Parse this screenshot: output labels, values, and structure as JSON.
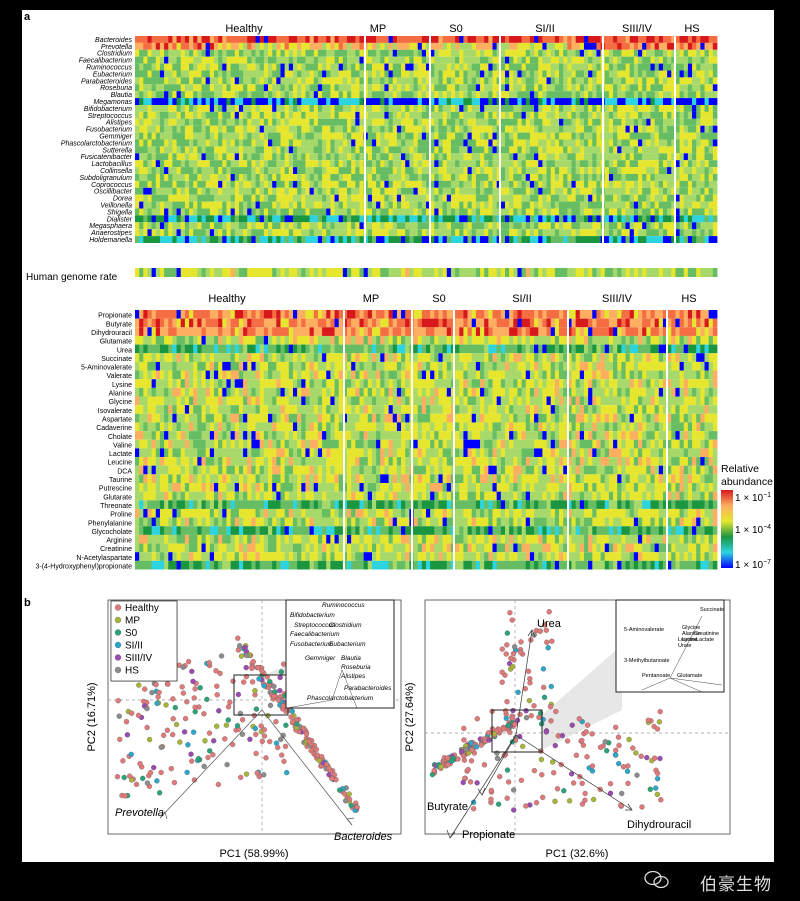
{
  "panel_a": {
    "label": "a",
    "heatmap1": {
      "groups": [
        "Healthy",
        "MP",
        "S0",
        "SI/II",
        "SIII/IV",
        "HS"
      ],
      "rows": [
        "Bacteroides",
        "Prevotella",
        "Clostridium",
        "Faecalibacterium",
        "Ruminococcus",
        "Eubacterium",
        "Parabacteroides",
        "Roseburia",
        "Blautia",
        "Megamonas",
        "Bifidobacterium",
        "Streptococcus",
        "Alistipes",
        "Fusobacterium",
        "Gemmiger",
        "Phascolarctobacterium",
        "Sutterella",
        "Fusicatenibacter",
        "Lactobacillus",
        "Collinsella",
        "Subdoligranulum",
        "Coprococcus",
        "Oscillibacter",
        "Dorea",
        "Veillonella",
        "Shigella",
        "Dialister",
        "Megasphaera",
        "Anaerostipes",
        "Holdemanella"
      ],
      "extra_row_label": "Human genome rate"
    },
    "heatmap2": {
      "groups": [
        "Healthy",
        "MP",
        "S0",
        "SI/II",
        "SIII/IV",
        "HS"
      ],
      "rows": [
        "Propionate",
        "Butyrate",
        "Dihydrouracil",
        "Glutamate",
        "Urea",
        "Succinate",
        "5-Aminovalerate",
        "Valerate",
        "Lysine",
        "Alanine",
        "Glycine",
        "Isovalerate",
        "Aspartate",
        "Cadaverine",
        "Cholate",
        "Valine",
        "Lactate",
        "Leucine",
        "DCA",
        "Taurine",
        "Putrescine",
        "Glutarate",
        "Threonate",
        "Proline",
        "Phenylalanine",
        "Glycocholate",
        "Arginine",
        "Creatinine",
        "N-Acetylaspartate",
        "3-(4-Hydroxyphenyl)propionate"
      ]
    },
    "colorbar": {
      "title_line1": "Relative",
      "title_line2": "abundance",
      "ticks": [
        "1 × 10",
        "1 × 10",
        "1 × 10"
      ],
      "exponents": [
        "−1",
        "−4",
        "−7"
      ],
      "colors": [
        "#d7191c",
        "#fdae61",
        "#e6e62f",
        "#1a9641",
        "#2dd4e0",
        "#0000ff"
      ]
    }
  },
  "panel_b": {
    "label": "b",
    "legend": [
      {
        "name": "Healthy",
        "color": "#e07a7a"
      },
      {
        "name": "MP",
        "color": "#a8b43a"
      },
      {
        "name": "S0",
        "color": "#2aa37a"
      },
      {
        "name": "SI/II",
        "color": "#2aa7c9"
      },
      {
        "name": "SIII/IV",
        "color": "#9a4bb0"
      },
      {
        "name": "HS",
        "color": "#8c8c8c"
      }
    ],
    "left_plot": {
      "xlabel": "PC1 (58.99%)",
      "ylabel": "PC2 (16.71%)",
      "vectors": [
        "Prevotella",
        "Bacteroides"
      ],
      "inset_labels": [
        "Ruminococcus",
        "Bifidobacterium",
        "Streptococcus",
        "Clostridium",
        "Faecalibacterium",
        "Fusobacterium",
        "Eubacterium",
        "Blautia",
        "Gemmiger",
        "Roseburia",
        "Alistipes",
        "Parabacteroides",
        "Phascolarctobacterium"
      ]
    },
    "right_plot": {
      "xlabel": "PC1 (32.6%)",
      "ylabel": "PC2 (27.64%)",
      "vectors": [
        "Urea",
        "Butyrate",
        "Propionate",
        "Dihydrouracil"
      ],
      "inset_labels": [
        "Succinate",
        "5-Aminovalerate",
        "Glycine",
        "Alanine",
        "Creatinine",
        "Lysine",
        "Lactate",
        "Leucine",
        "Urate",
        "3-Methylbutanoate",
        "Pentanoate",
        "Glutamate"
      ]
    }
  },
  "watermark": {
    "text": "伯豪生物"
  }
}
